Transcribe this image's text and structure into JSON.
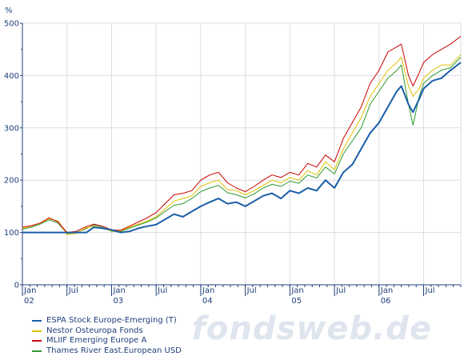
{
  "chart_data": {
    "type": "line",
    "title": "",
    "ylabel": "%",
    "xlabel": "",
    "ylim": [
      0,
      500
    ],
    "xlim": [
      2002.0,
      2006.917
    ],
    "y_ticks": [
      "0",
      "100",
      "200",
      "300",
      "400",
      "500"
    ],
    "x_ticks": [
      {
        "x": 2002.0,
        "label": "Jan",
        "year": "02"
      },
      {
        "x": 2002.5,
        "label": "Jul",
        "year": ""
      },
      {
        "x": 2003.0,
        "label": "Jan",
        "year": "03"
      },
      {
        "x": 2003.5,
        "label": "Jul",
        "year": ""
      },
      {
        "x": 2004.0,
        "label": "Jan",
        "year": "04"
      },
      {
        "x": 2004.5,
        "label": "Jul",
        "year": ""
      },
      {
        "x": 2005.0,
        "label": "Jan",
        "year": "05"
      },
      {
        "x": 2005.5,
        "label": "Jul",
        "year": ""
      },
      {
        "x": 2006.0,
        "label": "Jan",
        "year": "06"
      },
      {
        "x": 2006.5,
        "label": "Jul",
        "year": ""
      }
    ],
    "grid": true,
    "legend_position": "bottom-left",
    "series": [
      {
        "name": "ESPA Stock Europe-Emerging (T)",
        "color": "#1a5ea8",
        "x": [
          2002.0,
          2002.72,
          2002.8,
          2002.9,
          2003.0,
          2003.1,
          2003.2,
          2003.3,
          2003.4,
          2003.5,
          2003.6,
          2003.7,
          2003.8,
          2003.9,
          2004.0,
          2004.1,
          2004.2,
          2004.3,
          2004.4,
          2004.5,
          2004.6,
          2004.7,
          2004.8,
          2004.9,
          2005.0,
          2005.1,
          2005.2,
          2005.3,
          2005.4,
          2005.5,
          2005.6,
          2005.7,
          2005.8,
          2005.9,
          2006.0,
          2006.1,
          2006.2,
          2006.25,
          2006.33,
          2006.38,
          2006.45,
          2006.5,
          2006.6,
          2006.7,
          2006.8,
          2006.917
        ],
        "values": [
          100,
          100,
          110,
          108,
          105,
          100,
          102,
          108,
          112,
          115,
          125,
          135,
          130,
          140,
          150,
          158,
          165,
          155,
          158,
          150,
          160,
          170,
          175,
          165,
          180,
          175,
          185,
          180,
          200,
          185,
          215,
          230,
          260,
          290,
          310,
          340,
          370,
          380,
          345,
          330,
          355,
          375,
          390,
          395,
          410,
          425
        ]
      },
      {
        "name": "Nestor Osteuropa Fonds",
        "color": "#e0c000",
        "x": [
          2002.0,
          2002.1,
          2002.2,
          2002.3,
          2002.4,
          2002.5,
          2002.6,
          2002.7,
          2002.8,
          2002.9,
          2003.0,
          2003.1,
          2003.2,
          2003.3,
          2003.4,
          2003.5,
          2003.6,
          2003.7,
          2003.8,
          2003.9,
          2004.0,
          2004.1,
          2004.2,
          2004.3,
          2004.4,
          2004.5,
          2004.6,
          2004.7,
          2004.8,
          2004.9,
          2005.0,
          2005.1,
          2005.2,
          2005.3,
          2005.4,
          2005.5,
          2005.6,
          2005.7,
          2005.8,
          2005.9,
          2006.0,
          2006.1,
          2006.2,
          2006.25,
          2006.33,
          2006.38,
          2006.45,
          2006.5,
          2006.6,
          2006.7,
          2006.8,
          2006.917
        ],
        "values": [
          108,
          112,
          118,
          126,
          122,
          96,
          98,
          108,
          112,
          108,
          103,
          103,
          110,
          116,
          122,
          130,
          145,
          160,
          165,
          170,
          188,
          195,
          200,
          182,
          180,
          172,
          180,
          190,
          200,
          195,
          205,
          200,
          218,
          210,
          235,
          220,
          260,
          290,
          320,
          360,
          385,
          410,
          425,
          435,
          380,
          360,
          375,
          395,
          410,
          420,
          420,
          440
        ]
      },
      {
        "name": "MLIIF Emerging Europe A",
        "color": "#cc0000",
        "x": [
          2002.0,
          2002.1,
          2002.2,
          2002.3,
          2002.4,
          2002.5,
          2002.6,
          2002.7,
          2002.8,
          2002.9,
          2003.0,
          2003.1,
          2003.2,
          2003.3,
          2003.4,
          2003.5,
          2003.6,
          2003.7,
          2003.8,
          2003.9,
          2004.0,
          2004.1,
          2004.2,
          2004.3,
          2004.4,
          2004.5,
          2004.6,
          2004.7,
          2004.8,
          2004.9,
          2005.0,
          2005.1,
          2005.2,
          2005.3,
          2005.4,
          2005.5,
          2005.6,
          2005.7,
          2005.8,
          2005.9,
          2006.0,
          2006.1,
          2006.2,
          2006.25,
          2006.33,
          2006.38,
          2006.45,
          2006.5,
          2006.6,
          2006.7,
          2006.8,
          2006.917
        ],
        "values": [
          110,
          113,
          118,
          128,
          120,
          100,
          102,
          110,
          116,
          112,
          105,
          104,
          112,
          120,
          128,
          138,
          155,
          172,
          175,
          180,
          200,
          210,
          215,
          195,
          185,
          178,
          188,
          200,
          210,
          205,
          215,
          210,
          232,
          225,
          248,
          235,
          280,
          310,
          340,
          385,
          410,
          445,
          455,
          460,
          400,
          380,
          405,
          425,
          440,
          450,
          460,
          475
        ]
      },
      {
        "name": "Thames River East.European USD",
        "color": "#2e9a2e",
        "x": [
          2002.0,
          2002.1,
          2002.2,
          2002.3,
          2002.4,
          2002.5,
          2002.6,
          2002.7,
          2002.8,
          2002.9,
          2003.0,
          2003.1,
          2003.2,
          2003.3,
          2003.4,
          2003.5,
          2003.6,
          2003.7,
          2003.8,
          2003.9,
          2004.0,
          2004.1,
          2004.2,
          2004.3,
          2004.4,
          2004.5,
          2004.6,
          2004.7,
          2004.8,
          2004.9,
          2005.0,
          2005.1,
          2005.2,
          2005.3,
          2005.4,
          2005.5,
          2005.6,
          2005.7,
          2005.8,
          2005.9,
          2006.0,
          2006.1,
          2006.2,
          2006.25,
          2006.33,
          2006.38,
          2006.45,
          2006.5,
          2006.6,
          2006.7,
          2006.8,
          2006.917
        ],
        "values": [
          106,
          110,
          116,
          124,
          118,
          98,
          100,
          106,
          114,
          110,
          102,
          102,
          108,
          114,
          120,
          128,
          140,
          152,
          155,
          165,
          178,
          185,
          190,
          176,
          172,
          166,
          174,
          185,
          192,
          188,
          198,
          194,
          210,
          204,
          225,
          212,
          250,
          275,
          300,
          345,
          370,
          395,
          410,
          420,
          345,
          305,
          360,
          385,
          400,
          410,
          415,
          435
        ]
      }
    ]
  },
  "watermark": "fondsweb.de"
}
